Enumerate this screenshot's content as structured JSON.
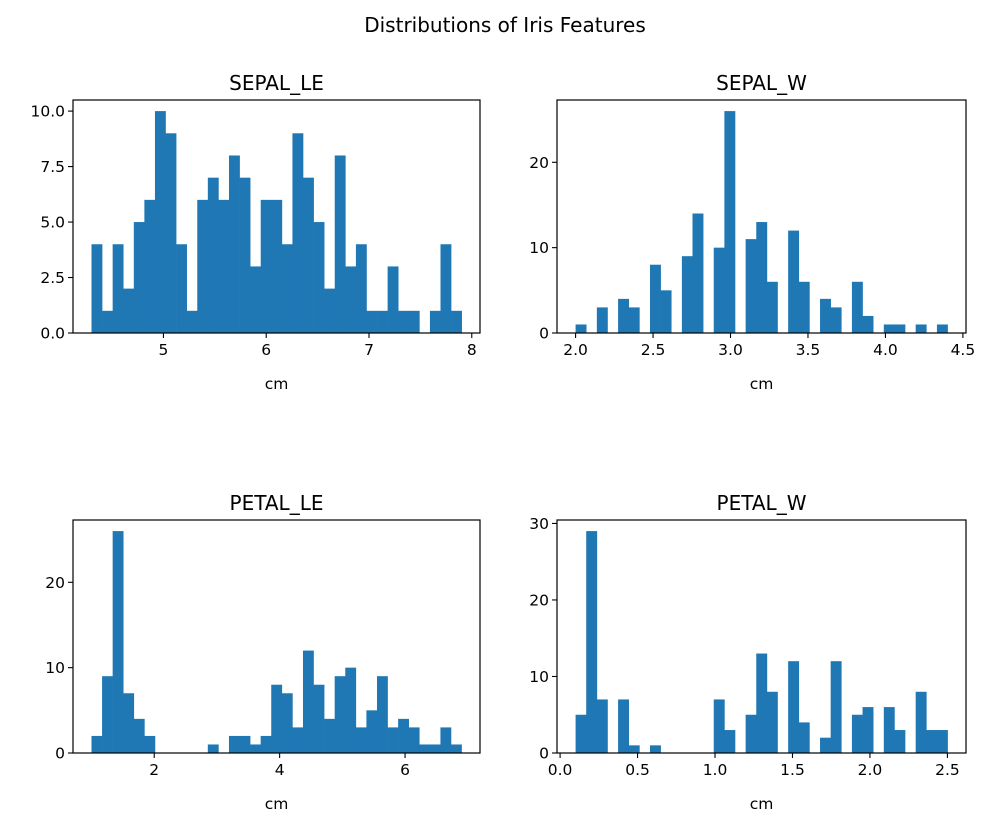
{
  "figure": {
    "title": "Distributions of Iris Features"
  },
  "chart_data": [
    {
      "type": "bar",
      "title": "SEPAL_LE",
      "xlabel": "cm",
      "ylabel": "",
      "xlim": [
        4.12,
        8.08
      ],
      "ylim": [
        0,
        10.5
      ],
      "xticks": [
        5,
        6,
        7,
        8
      ],
      "xtick_labels": [
        "5",
        "6",
        "7",
        "8"
      ],
      "yticks": [
        0,
        2.5,
        5,
        7.5,
        10
      ],
      "ytick_labels": [
        "0.0",
        "2.5",
        "5.0",
        "7.5",
        "10.0"
      ],
      "bin_start": 4.3,
      "bin_width": 0.1029,
      "counts": [
        4,
        1,
        4,
        2,
        5,
        6,
        10,
        9,
        4,
        1,
        6,
        7,
        6,
        8,
        7,
        3,
        6,
        6,
        4,
        9,
        7,
        5,
        2,
        8,
        3,
        4,
        1,
        1,
        3,
        1,
        1,
        0,
        1,
        4,
        1
      ],
      "color": "#1f77b4"
    },
    {
      "type": "bar",
      "title": "SEPAL_W",
      "xlabel": "cm",
      "ylabel": "",
      "xlim": [
        1.88,
        4.52
      ],
      "ylim": [
        0,
        27.3
      ],
      "xticks": [
        2.0,
        2.5,
        3.0,
        3.5,
        4.0,
        4.5
      ],
      "xtick_labels": [
        "2.0",
        "2.5",
        "3.0",
        "3.5",
        "4.0",
        "4.5"
      ],
      "yticks": [
        0,
        10,
        20
      ],
      "ytick_labels": [
        "0",
        "10",
        "20"
      ],
      "bin_start": 2.0,
      "bin_width": 0.0686,
      "counts": [
        1,
        0,
        3,
        0,
        4,
        3,
        0,
        8,
        5,
        0,
        9,
        14,
        0,
        10,
        26,
        0,
        11,
        13,
        6,
        0,
        12,
        6,
        0,
        4,
        3,
        0,
        6,
        2,
        0,
        1,
        1,
        0,
        1,
        0,
        1
      ],
      "color": "#1f77b4"
    },
    {
      "type": "bar",
      "title": "PETAL_LE",
      "xlabel": "cm",
      "ylabel": "",
      "xlim": [
        0.705,
        7.195
      ],
      "ylim": [
        0,
        27.3
      ],
      "xticks": [
        2,
        4,
        6
      ],
      "xtick_labels": [
        "2",
        "4",
        "6"
      ],
      "yticks": [
        0,
        10,
        20
      ],
      "ytick_labels": [
        "0",
        "10",
        "20"
      ],
      "bin_start": 1.0,
      "bin_width": 0.1686,
      "counts": [
        2,
        9,
        26,
        7,
        4,
        2,
        0,
        0,
        0,
        0,
        0,
        1,
        0,
        2,
        2,
        1,
        2,
        8,
        7,
        3,
        12,
        8,
        4,
        9,
        10,
        3,
        5,
        9,
        3,
        4,
        3,
        1,
        1,
        3,
        1
      ],
      "color": "#1f77b4"
    },
    {
      "type": "bar",
      "title": "PETAL_W",
      "xlabel": "cm",
      "ylabel": "",
      "xlim": [
        -0.02,
        2.62
      ],
      "ylim": [
        0,
        30.45
      ],
      "xticks": [
        0.0,
        0.5,
        1.0,
        1.5,
        2.0,
        2.5
      ],
      "xtick_labels": [
        "0.0",
        "0.5",
        "1.0",
        "1.5",
        "2.0",
        "2.5"
      ],
      "yticks": [
        0,
        10,
        20,
        30
      ],
      "ytick_labels": [
        "0",
        "10",
        "20",
        "30"
      ],
      "bin_start": 0.1,
      "bin_width": 0.0686,
      "counts": [
        5,
        29,
        7,
        0,
        7,
        1,
        0,
        1,
        0,
        0,
        0,
        0,
        0,
        7,
        3,
        0,
        5,
        13,
        8,
        0,
        12,
        4,
        0,
        2,
        12,
        0,
        5,
        6,
        0,
        6,
        3,
        0,
        8,
        3,
        3
      ],
      "color": "#1f77b4"
    }
  ]
}
